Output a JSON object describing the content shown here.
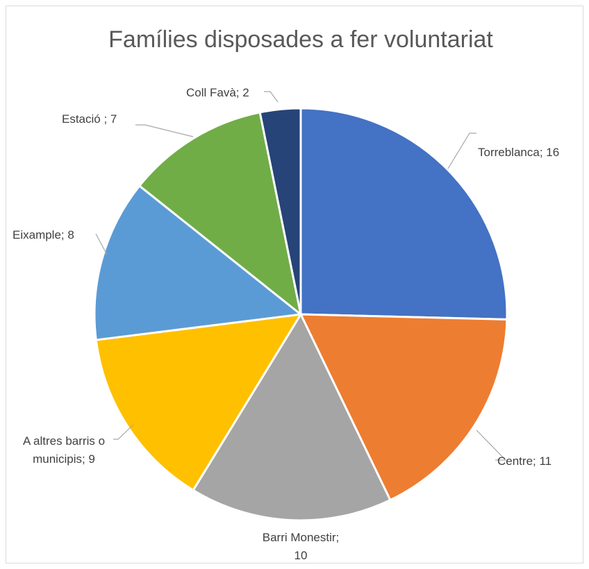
{
  "chart_data": {
    "type": "pie",
    "title": "Famílies disposades a fer voluntariat",
    "slices": [
      {
        "name": "Torreblanca",
        "value": 16,
        "label_lines": [
          "Torreblanca; 16"
        ],
        "color": "#4472C4"
      },
      {
        "name": "Centre",
        "value": 11,
        "label_lines": [
          "Centre; 11"
        ],
        "color": "#ED7D31"
      },
      {
        "name": "Barri Monestir",
        "value": 10,
        "label_lines": [
          "Barri Monestir;",
          "10"
        ],
        "color": "#A5A5A5"
      },
      {
        "name": "A altres barris o municipis",
        "value": 9,
        "label_lines": [
          "A altres barris o",
          "municipis; 9"
        ],
        "color": "#FFC000"
      },
      {
        "name": "Eixample",
        "value": 8,
        "label_lines": [
          "Eixample; 8"
        ],
        "color": "#5B9BD5"
      },
      {
        "name": "Estació ",
        "value": 7,
        "label_lines": [
          "Estació ; 7"
        ],
        "color": "#70AD47"
      },
      {
        "name": "Coll Favà",
        "value": 2,
        "label_lines": [
          "Coll Favà; 2"
        ],
        "color": "#264478"
      }
    ],
    "legend": "none",
    "data_labels": "category; value with leader lines"
  }
}
